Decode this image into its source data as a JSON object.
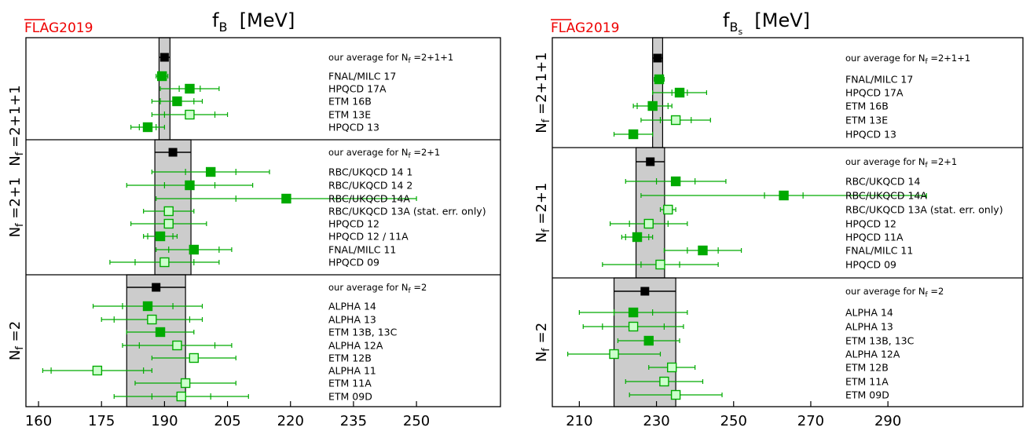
{
  "colors": {
    "green": "#00aa00",
    "black": "#000000",
    "band": "#cccccc",
    "flag_red": "#ee0000"
  },
  "chart_data": [
    {
      "type": "scatter",
      "logo": "FLAG2019",
      "title_main": "f",
      "title_sub": "B",
      "title_unit": "[MeV]",
      "xlim": [
        157,
        270
      ],
      "xticks": [
        160,
        175,
        190,
        205,
        220,
        235,
        250
      ],
      "groups": [
        {
          "name": "Nf=2+1+1",
          "label_main": "N",
          "label_sub": "f",
          "label_rest": " =2+1+1",
          "average_label": "our average for N",
          "average_label_sub": "f",
          "average_label_rest": " =2+1+1",
          "average": {
            "x": 190.0,
            "stat": 1.3,
            "tot": 1.3
          },
          "entries": [
            {
              "label": "FNAL/MILC 17",
              "x": 189.4,
              "stat": 0.8,
              "tot": 1.4,
              "filled": true
            },
            {
              "label": "HPQCD 17A",
              "x": 196.0,
              "stat": 2.5,
              "tot": 7.0,
              "filled": true
            },
            {
              "label": "ETM 16B",
              "x": 193.0,
              "stat": 4.0,
              "tot": 6.0,
              "filled": true
            },
            {
              "label": "ETM 13E",
              "x": 196.0,
              "stat": 6.0,
              "tot": 9.0,
              "filled": false
            },
            {
              "label": "HPQCD 13",
              "x": 186.0,
              "stat": 2.0,
              "tot": 4.0,
              "filled": true
            }
          ]
        },
        {
          "name": "Nf=2+1",
          "label_main": "N",
          "label_sub": "f",
          "label_rest": " =2+1",
          "average_label": "our average for N",
          "average_label_sub": "f",
          "average_label_rest": " =2+1",
          "average": {
            "x": 192.0,
            "stat": 4.3,
            "tot": 4.3
          },
          "entries": [
            {
              "label": "RBC/UKQCD 14 1",
              "x": 201.0,
              "stat": 6.0,
              "tot": 14.0,
              "filled": true
            },
            {
              "label": "RBC/UKQCD 14 2",
              "x": 196.0,
              "stat": 6.0,
              "tot": 15.0,
              "filled": true
            },
            {
              "label": "RBC/UKQCD 14A",
              "x": 219.0,
              "stat": 12.0,
              "tot": 31.0,
              "filled": true
            },
            {
              "label": "RBC/UKQCD 13A (stat. err. only)",
              "x": 191.0,
              "stat": 6.0,
              "tot": 6.0,
              "filled": false
            },
            {
              "label": "HPQCD 12",
              "x": 191.0,
              "stat": 1.0,
              "tot": 9.0,
              "filled": false
            },
            {
              "label": "HPQCD 12 / 11A",
              "x": 189.0,
              "stat": 3.0,
              "tot": 4.0,
              "filled": true
            },
            {
              "label": "FNAL/MILC 11",
              "x": 197.0,
              "stat": 6.0,
              "tot": 9.0,
              "filled": true
            },
            {
              "label": "HPQCD 09",
              "x": 190.0,
              "stat": 7.0,
              "tot": 13.0,
              "filled": false
            }
          ]
        },
        {
          "name": "Nf=2",
          "label_main": "N",
          "label_sub": "f",
          "label_rest": " =2",
          "average_label": "our average for N",
          "average_label_sub": "f",
          "average_label_rest": " =2",
          "average": {
            "x": 188.0,
            "stat": 7.0,
            "tot": 7.0
          },
          "entries": [
            {
              "label": "ALPHA 14",
              "x": 186.0,
              "stat": 6.0,
              "tot": 13.0,
              "filled": true
            },
            {
              "label": "ALPHA 13",
              "x": 187.0,
              "stat": 9.0,
              "tot": 12.0,
              "filled": false
            },
            {
              "label": "ETM 13B, 13C",
              "x": 189.0,
              "stat": 8.0,
              "tot": 8.0,
              "filled": true
            },
            {
              "label": "ALPHA 12A",
              "x": 193.0,
              "stat": 9.0,
              "tot": 13.0,
              "filled": false
            },
            {
              "label": "ETM 12B",
              "x": 197.0,
              "stat": 10.0,
              "tot": 10.0,
              "filled": false
            },
            {
              "label": "ALPHA 11",
              "x": 174.0,
              "stat": 11.0,
              "tot": 13.0,
              "filled": false
            },
            {
              "label": "ETM 11A",
              "x": 195.0,
              "stat": 12.0,
              "tot": 12.0,
              "filled": false
            },
            {
              "label": "ETM 09D",
              "x": 194.0,
              "stat": 7.0,
              "tot": 16.0,
              "filled": false
            }
          ]
        }
      ]
    },
    {
      "type": "scatter",
      "logo": "FLAG2019",
      "title_main": "f",
      "title_sub": "B",
      "title_subsub": "s",
      "title_unit": "[MeV]",
      "xlim": [
        203,
        325
      ],
      "xticks": [
        210,
        230,
        250,
        270,
        290
      ],
      "groups": [
        {
          "name": "Nf=2+1+1",
          "label_main": "N",
          "label_sub": "f",
          "label_rest": " =2+1+1",
          "average_label": "our average for N",
          "average_label_sub": "f",
          "average_label_rest": " =2+1+1",
          "average": {
            "x": 230.3,
            "stat": 1.3,
            "tot": 1.3
          },
          "entries": [
            {
              "label": "FNAL/MILC 17",
              "x": 230.7,
              "stat": 0.8,
              "tot": 1.3,
              "filled": true
            },
            {
              "label": "HPQCD 17A",
              "x": 236.0,
              "stat": 2.0,
              "tot": 7.0,
              "filled": true
            },
            {
              "label": "ETM 16B",
              "x": 229.0,
              "stat": 4.0,
              "tot": 5.0,
              "filled": true
            },
            {
              "label": "ETM 13E",
              "x": 235.0,
              "stat": 4.0,
              "tot": 9.0,
              "filled": false
            },
            {
              "label": "HPQCD 13",
              "x": 224.0,
              "stat": 1.0,
              "tot": 5.0,
              "filled": true
            }
          ]
        },
        {
          "name": "Nf=2+1",
          "label_main": "N",
          "label_sub": "f",
          "label_rest": " =2+1",
          "average_label": "our average for N",
          "average_label_sub": "f",
          "average_label_rest": " =2+1",
          "average": {
            "x": 228.4,
            "stat": 3.7,
            "tot": 3.7
          },
          "entries": [
            {
              "label": "RBC/UKQCD 14",
              "x": 235.0,
              "stat": 5.0,
              "tot": 13.0,
              "filled": true
            },
            {
              "label": "RBC/UKQCD 14A",
              "x": 263.0,
              "stat": 5.0,
              "tot": 37.0,
              "filled": true
            },
            {
              "label": "RBC/UKQCD 13A (stat. err. only)",
              "x": 233.0,
              "stat": 2.0,
              "tot": 2.0,
              "filled": false
            },
            {
              "label": "HPQCD 12",
              "x": 228.0,
              "stat": 5.0,
              "tot": 10.0,
              "filled": false
            },
            {
              "label": "HPQCD 11A",
              "x": 225.0,
              "stat": 3.0,
              "tot": 4.0,
              "filled": true
            },
            {
              "label": "FNAL/MILC 11",
              "x": 242.0,
              "stat": 4.0,
              "tot": 10.0,
              "filled": true
            },
            {
              "label": "HPQCD 09",
              "x": 231.0,
              "stat": 5.0,
              "tot": 15.0,
              "filled": false
            }
          ]
        },
        {
          "name": "Nf=2",
          "label_main": "N",
          "label_sub": "f",
          "label_rest": " =2",
          "average_label": "our average for N",
          "average_label_sub": "f",
          "average_label_rest": " =2",
          "average": {
            "x": 227.0,
            "stat": 8.0,
            "tot": 8.0
          },
          "entries": [
            {
              "label": "ALPHA 14",
              "x": 224.0,
              "stat": 5.0,
              "tot": 14.0,
              "filled": true
            },
            {
              "label": "ALPHA 13",
              "x": 224.0,
              "stat": 8.0,
              "tot": 13.0,
              "filled": false
            },
            {
              "label": "ETM 13B, 13C",
              "x": 228.0,
              "stat": 8.0,
              "tot": 8.0,
              "filled": true
            },
            {
              "label": "ALPHA 12A",
              "x": 219.0,
              "stat": 12.0,
              "tot": 12.0,
              "filled": false
            },
            {
              "label": "ETM 12B",
              "x": 234.0,
              "stat": 6.0,
              "tot": 6.0,
              "filled": false
            },
            {
              "label": "ETM 11A",
              "x": 232.0,
              "stat": 10.0,
              "tot": 10.0,
              "filled": false
            },
            {
              "label": "ETM 09D",
              "x": 235.0,
              "stat": 12.0,
              "tot": 12.0,
              "filled": false
            }
          ]
        }
      ]
    }
  ]
}
